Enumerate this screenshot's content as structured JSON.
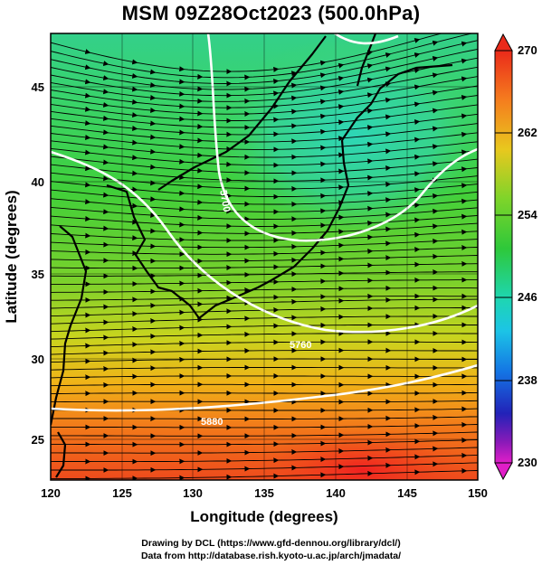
{
  "title": "MSM 09Z28Oct2023 (500.0hPa)",
  "xlabel": "Longitude (degrees)",
  "ylabel": "Latitude  (degrees)",
  "x_ticks": [
    "120",
    "125",
    "130",
    "135",
    "140",
    "145",
    "150"
  ],
  "y_ticks": [
    "25",
    "30",
    "35",
    "40",
    "45"
  ],
  "colorbar": {
    "labels": [
      "270",
      "262",
      "254",
      "246",
      "238",
      "230"
    ],
    "min": 230,
    "max": 270
  },
  "contour_labels": [
    "5880",
    "5760",
    "5700"
  ],
  "credits": {
    "line1": "Drawing by DCL (https://www.gfd-dennou.org/library/dcl/)",
    "line2": "Data from http://database.rish.kyoto-u.ac.jp/arch/jmadata/"
  },
  "map": {
    "lon_range": [
      120,
      150
    ],
    "lat_range": [
      22.5,
      47.5
    ],
    "field": "temperature (K) at 500.0hPa",
    "streamlines": "wind",
    "contours": "geopotential height (m)"
  }
}
